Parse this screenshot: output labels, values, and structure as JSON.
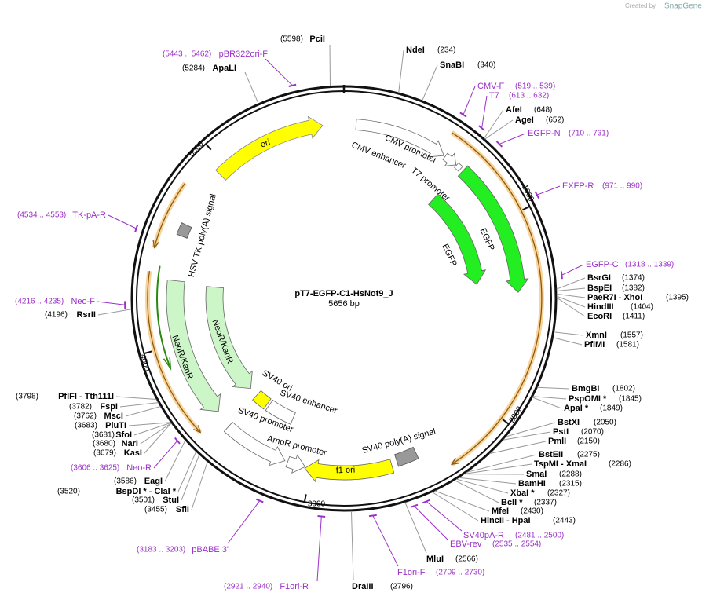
{
  "header": {
    "created_by": "Created by",
    "brand": "SnapGene"
  },
  "map": {
    "name": "pT7-EGFP-C1-HsNot9_J",
    "size": "5656 bp",
    "ticks": [
      "1000",
      "2000",
      "3000",
      "4000",
      "5000"
    ]
  },
  "enzymes": [
    {
      "name": "PciI",
      "site": "(5598)"
    },
    {
      "name": "NdeI",
      "site": "(234)"
    },
    {
      "name": "SnaBI",
      "site": "(340)"
    },
    {
      "name": "AfeI",
      "site": "(648)"
    },
    {
      "name": "AgeI",
      "site": "(652)"
    },
    {
      "name": "BsrGI",
      "site": "(1374)"
    },
    {
      "name": "BspEI",
      "site": "(1382)"
    },
    {
      "name": "PaeR7I  - XhoI",
      "site": "(1395)"
    },
    {
      "name": "HindIII",
      "site": "(1404)"
    },
    {
      "name": "EcoRI",
      "site": "(1411)"
    },
    {
      "name": "XmnI",
      "site": "(1557)"
    },
    {
      "name": "PflMI",
      "site": "(1581)"
    },
    {
      "name": "BmgBI",
      "site": "(1802)"
    },
    {
      "name": "PspOMI *",
      "site": "(1845)"
    },
    {
      "name": "ApaI *",
      "site": "(1849)"
    },
    {
      "name": "BstXI",
      "site": "(2050)"
    },
    {
      "name": "PstI",
      "site": "(2070)"
    },
    {
      "name": "PmlI",
      "site": "(2150)"
    },
    {
      "name": "BstEII",
      "site": "(2275)"
    },
    {
      "name": "TspMI  - XmaI",
      "site": "(2286)"
    },
    {
      "name": "SmaI",
      "site": "(2288)"
    },
    {
      "name": "BamHI",
      "site": "(2315)"
    },
    {
      "name": "XbaI *",
      "site": "(2327)"
    },
    {
      "name": "BclI *",
      "site": "(2337)"
    },
    {
      "name": "MfeI",
      "site": "(2430)"
    },
    {
      "name": "HincII  - HpaI",
      "site": "(2443)"
    },
    {
      "name": "MluI",
      "site": "(2566)"
    },
    {
      "name": "DraIII",
      "site": "(2796)"
    },
    {
      "name": "RsrII",
      "site": "(4196)"
    },
    {
      "name": "PflFI  - Tth111I",
      "site": "(3798)"
    },
    {
      "name": "FspI",
      "site": "(3782)"
    },
    {
      "name": "MscI",
      "site": "(3762)"
    },
    {
      "name": "PluTI",
      "site": "(3683)"
    },
    {
      "name": "SfoI",
      "site": "(3681)"
    },
    {
      "name": "NarI",
      "site": "(3680)"
    },
    {
      "name": "KasI",
      "site": "(3679)"
    },
    {
      "name": "EagI",
      "site": "(3586)"
    },
    {
      "name": "BspDI *  - ClaI *",
      "site": "(3520)"
    },
    {
      "name": "StuI",
      "site": "(3501)"
    },
    {
      "name": "SfiI",
      "site": "(3455)"
    },
    {
      "name": "ApaLI",
      "site": "(5284)"
    }
  ],
  "primers": [
    {
      "name": "pBR322ori-F",
      "range": "(5443 .. 5462)"
    },
    {
      "name": "CMV-F",
      "range": "(519 .. 539)"
    },
    {
      "name": "T7",
      "range": "(613 .. 632)"
    },
    {
      "name": "EGFP-N",
      "range": "(710 .. 731)"
    },
    {
      "name": "EXFP-R",
      "range": "(971 .. 990)"
    },
    {
      "name": "EGFP-C",
      "range": "(1318 .. 1339)"
    },
    {
      "name": "SV40pA-R",
      "range": "(2481 .. 2500)"
    },
    {
      "name": "EBV-rev",
      "range": "(2535 .. 2554)"
    },
    {
      "name": "F1ori-F",
      "range": "(2709 .. 2730)"
    },
    {
      "name": "F1ori-R",
      "range": "(2921 .. 2940)"
    },
    {
      "name": "pBABE 3'",
      "range": "(3183 .. 3203)"
    },
    {
      "name": "Neo-R",
      "range": "(3606 .. 3625)"
    },
    {
      "name": "Neo-F",
      "range": "(4216 .. 4235)"
    },
    {
      "name": "TK-pA-R",
      "range": "(4534 .. 4553)"
    }
  ],
  "features": [
    {
      "label": "ori"
    },
    {
      "label": "CMV enhancer"
    },
    {
      "label": "CMV promoter"
    },
    {
      "label": "T7 promoter"
    },
    {
      "label": "EGFP"
    },
    {
      "label": "EGFP"
    },
    {
      "label": "HSV TK poly(A) signal"
    },
    {
      "label": "NeoR/KanR"
    },
    {
      "label": "NeoR/KanR"
    },
    {
      "label": "SV40 ori"
    },
    {
      "label": "SV40 enhancer"
    },
    {
      "label": "SV40 promoter"
    },
    {
      "label": "AmpR promoter"
    },
    {
      "label": "f1 ori"
    },
    {
      "label": "SV40 poly(A) signal"
    }
  ]
}
